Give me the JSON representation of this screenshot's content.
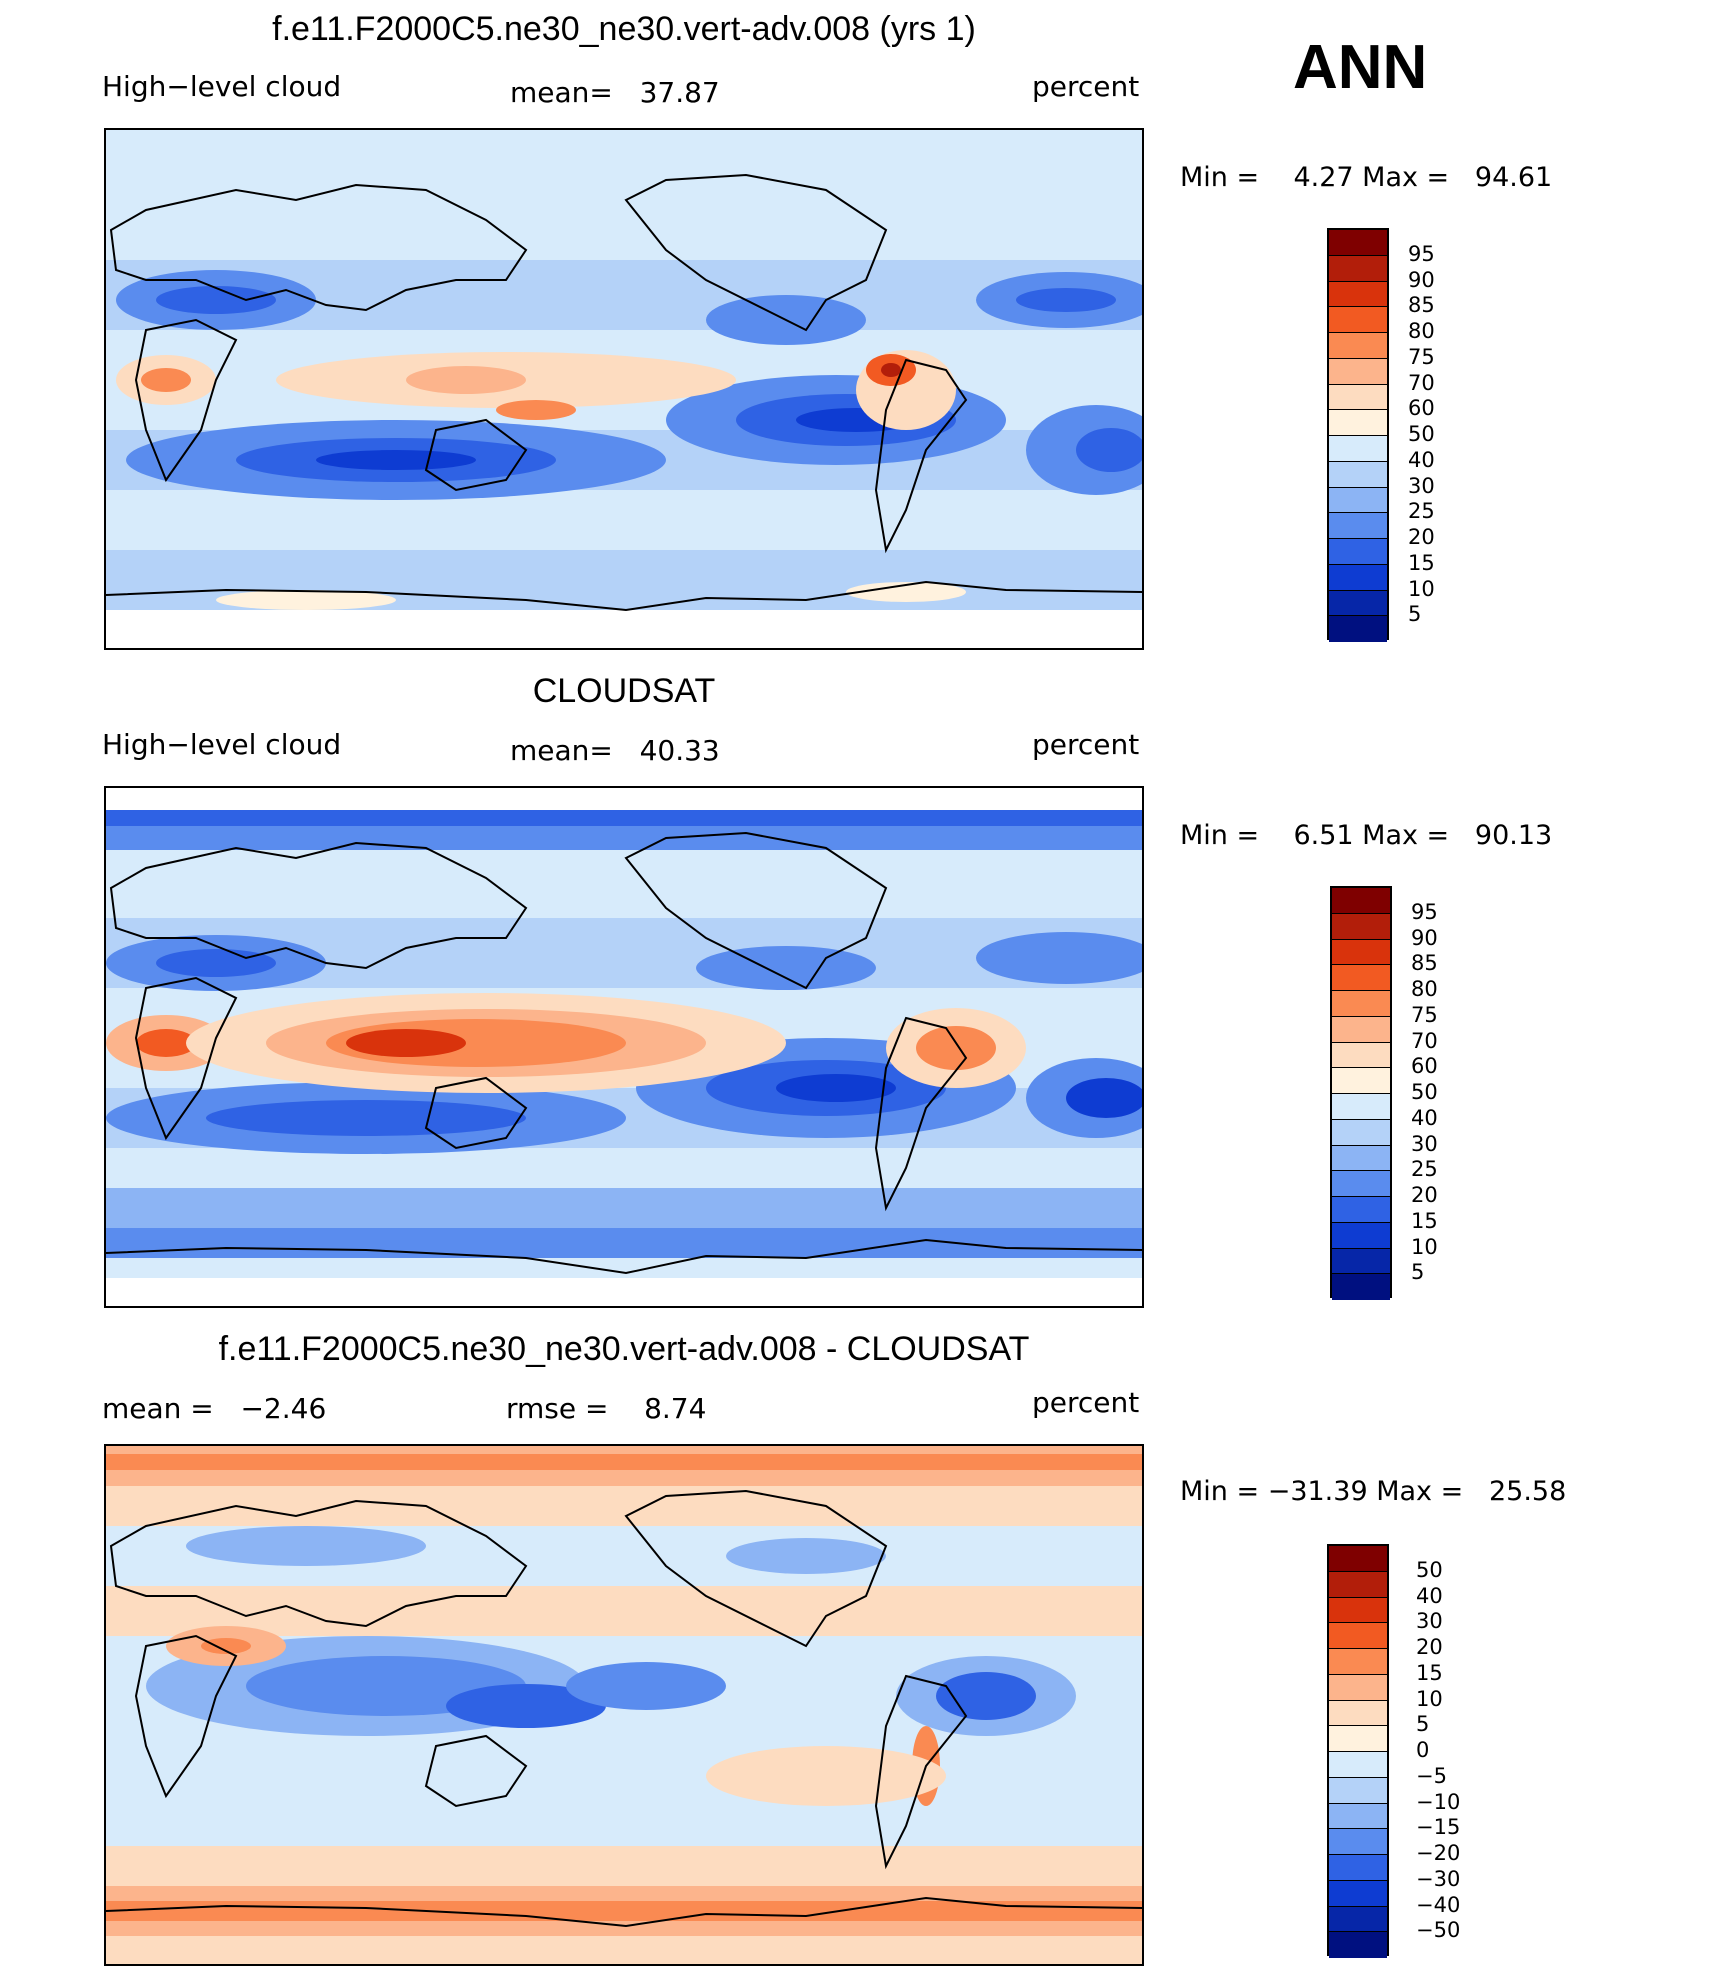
{
  "season": "ANN",
  "panels": [
    {
      "id": "model",
      "title": "f.e11.F2000C5.ne30_ne30.vert-adv.008 (yrs 1)",
      "field": "High−level cloud",
      "stat1": "mean=   37.87",
      "stat2": "",
      "units": "percent",
      "minmax": "Min =    4.27 Max =   94.61",
      "colorbar_levels": [
        "95",
        "90",
        "85",
        "80",
        "75",
        "70",
        "60",
        "50",
        "40",
        "30",
        "25",
        "20",
        "15",
        "10",
        "5"
      ]
    },
    {
      "id": "obs",
      "title": "CLOUDSAT",
      "field": "High−level cloud",
      "stat1": "mean=   40.33",
      "stat2": "",
      "units": "percent",
      "minmax": "Min =    6.51 Max =   90.13",
      "colorbar_levels": [
        "95",
        "90",
        "85",
        "80",
        "75",
        "70",
        "60",
        "50",
        "40",
        "30",
        "25",
        "20",
        "15",
        "10",
        "5"
      ]
    },
    {
      "id": "diff",
      "title": "f.e11.F2000C5.ne30_ne30.vert-adv.008 - CLOUDSAT",
      "field": "mean =   −2.46",
      "stat1": "rmse =    8.74",
      "stat2": "",
      "units": "percent",
      "minmax": "Min = −31.39 Max =   25.58",
      "colorbar_levels": [
        "50",
        "40",
        "30",
        "20",
        "15",
        "10",
        "5",
        "0",
        "−5",
        "−10",
        "−15",
        "−20",
        "−30",
        "−40",
        "−50"
      ]
    }
  ],
  "colors": {
    "palette_16": [
      "#7f0000",
      "#b21e0a",
      "#d9330c",
      "#f25a22",
      "#fa8a52",
      "#fcb48c",
      "#fddcc0",
      "#fff2de",
      "#d7ebfb",
      "#b4d2f8",
      "#8cb4f4",
      "#5a8cee",
      "#2f62e4",
      "#0e3cd2",
      "#0626a8",
      "#001080"
    ]
  }
}
